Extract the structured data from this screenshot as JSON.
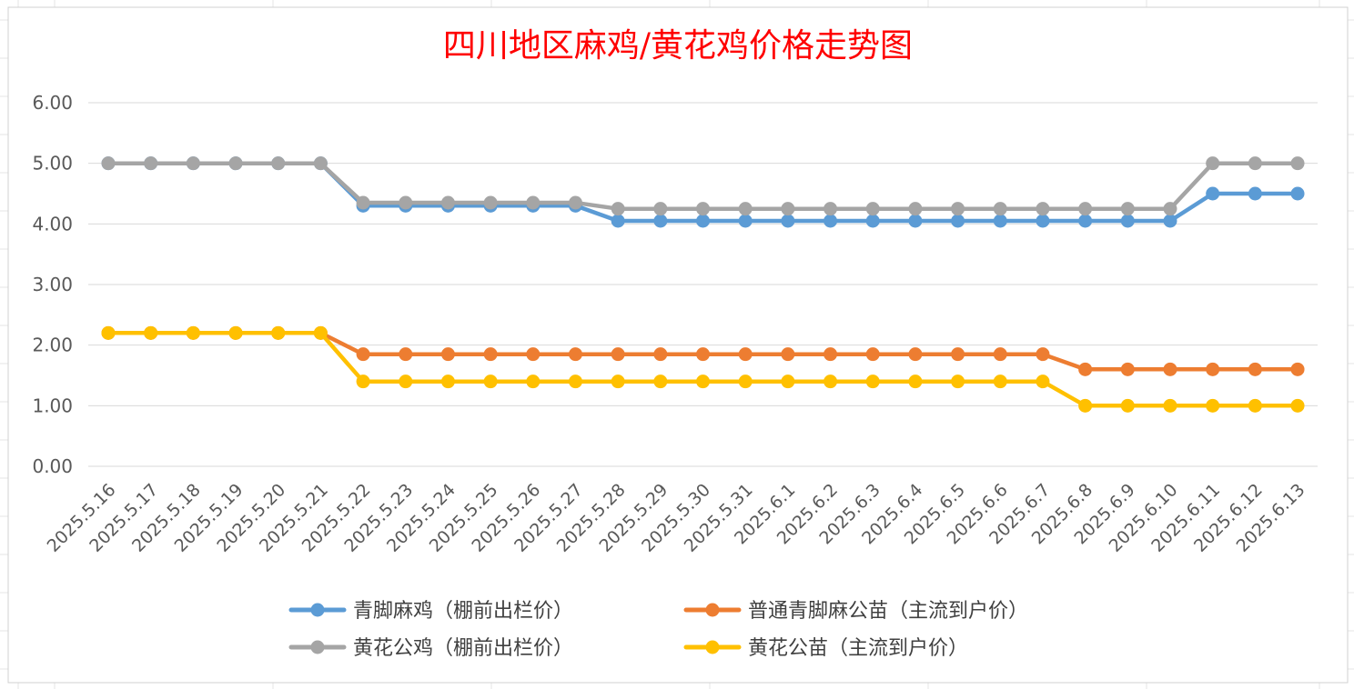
{
  "chart_data": {
    "type": "line",
    "title": "四川地区麻鸡/黄花鸡价格走势图",
    "xlabel": "",
    "ylabel": "",
    "ylim": [
      0,
      6
    ],
    "yticks": [
      "0.00",
      "1.00",
      "2.00",
      "3.00",
      "4.00",
      "5.00",
      "6.00"
    ],
    "grid": true,
    "legend_position": "bottom",
    "categories": [
      "2025.5.16",
      "2025.5.17",
      "2025.5.18",
      "2025.5.19",
      "2025.5.20",
      "2025.5.21",
      "2025.5.22",
      "2025.5.23",
      "2025.5.24",
      "2025.5.25",
      "2025.5.26",
      "2025.5.27",
      "2025.5.28",
      "2025.5.29",
      "2025.5.30",
      "2025.5.31",
      "2025.6.1",
      "2025.6.2",
      "2025.6.3",
      "2025.6.4",
      "2025.6.5",
      "2025.6.6",
      "2025.6.7",
      "2025.6.8",
      "2025.6.9",
      "2025.6.10",
      "2025.6.11",
      "2025.6.12",
      "2025.6.13"
    ],
    "series": [
      {
        "name": "青脚麻鸡（棚前出栏价）",
        "color": "#5b9bd5",
        "values": [
          5.0,
          5.0,
          5.0,
          5.0,
          5.0,
          5.0,
          4.3,
          4.3,
          4.3,
          4.3,
          4.3,
          4.3,
          4.05,
          4.05,
          4.05,
          4.05,
          4.05,
          4.05,
          4.05,
          4.05,
          4.05,
          4.05,
          4.05,
          4.05,
          4.05,
          4.05,
          4.5,
          4.5,
          4.5
        ]
      },
      {
        "name": "普通青脚麻公苗（主流到户价）",
        "color": "#ed7d31",
        "values": [
          2.2,
          2.2,
          2.2,
          2.2,
          2.2,
          2.2,
          1.85,
          1.85,
          1.85,
          1.85,
          1.85,
          1.85,
          1.85,
          1.85,
          1.85,
          1.85,
          1.85,
          1.85,
          1.85,
          1.85,
          1.85,
          1.85,
          1.85,
          1.6,
          1.6,
          1.6,
          1.6,
          1.6,
          1.6
        ]
      },
      {
        "name": "黄花公鸡（棚前出栏价）",
        "color": "#a5a5a5",
        "values": [
          5.0,
          5.0,
          5.0,
          5.0,
          5.0,
          5.0,
          4.35,
          4.35,
          4.35,
          4.35,
          4.35,
          4.35,
          4.25,
          4.25,
          4.25,
          4.25,
          4.25,
          4.25,
          4.25,
          4.25,
          4.25,
          4.25,
          4.25,
          4.25,
          4.25,
          4.25,
          5.0,
          5.0,
          5.0
        ]
      },
      {
        "name": "黄花公苗（主流到户价）",
        "color": "#ffc000",
        "values": [
          2.2,
          2.2,
          2.2,
          2.2,
          2.2,
          2.2,
          1.4,
          1.4,
          1.4,
          1.4,
          1.4,
          1.4,
          1.4,
          1.4,
          1.4,
          1.4,
          1.4,
          1.4,
          1.4,
          1.4,
          1.4,
          1.4,
          1.4,
          1.0,
          1.0,
          1.0,
          1.0,
          1.0,
          1.0
        ]
      }
    ],
    "draw_order": [
      0,
      2,
      1,
      3
    ]
  }
}
